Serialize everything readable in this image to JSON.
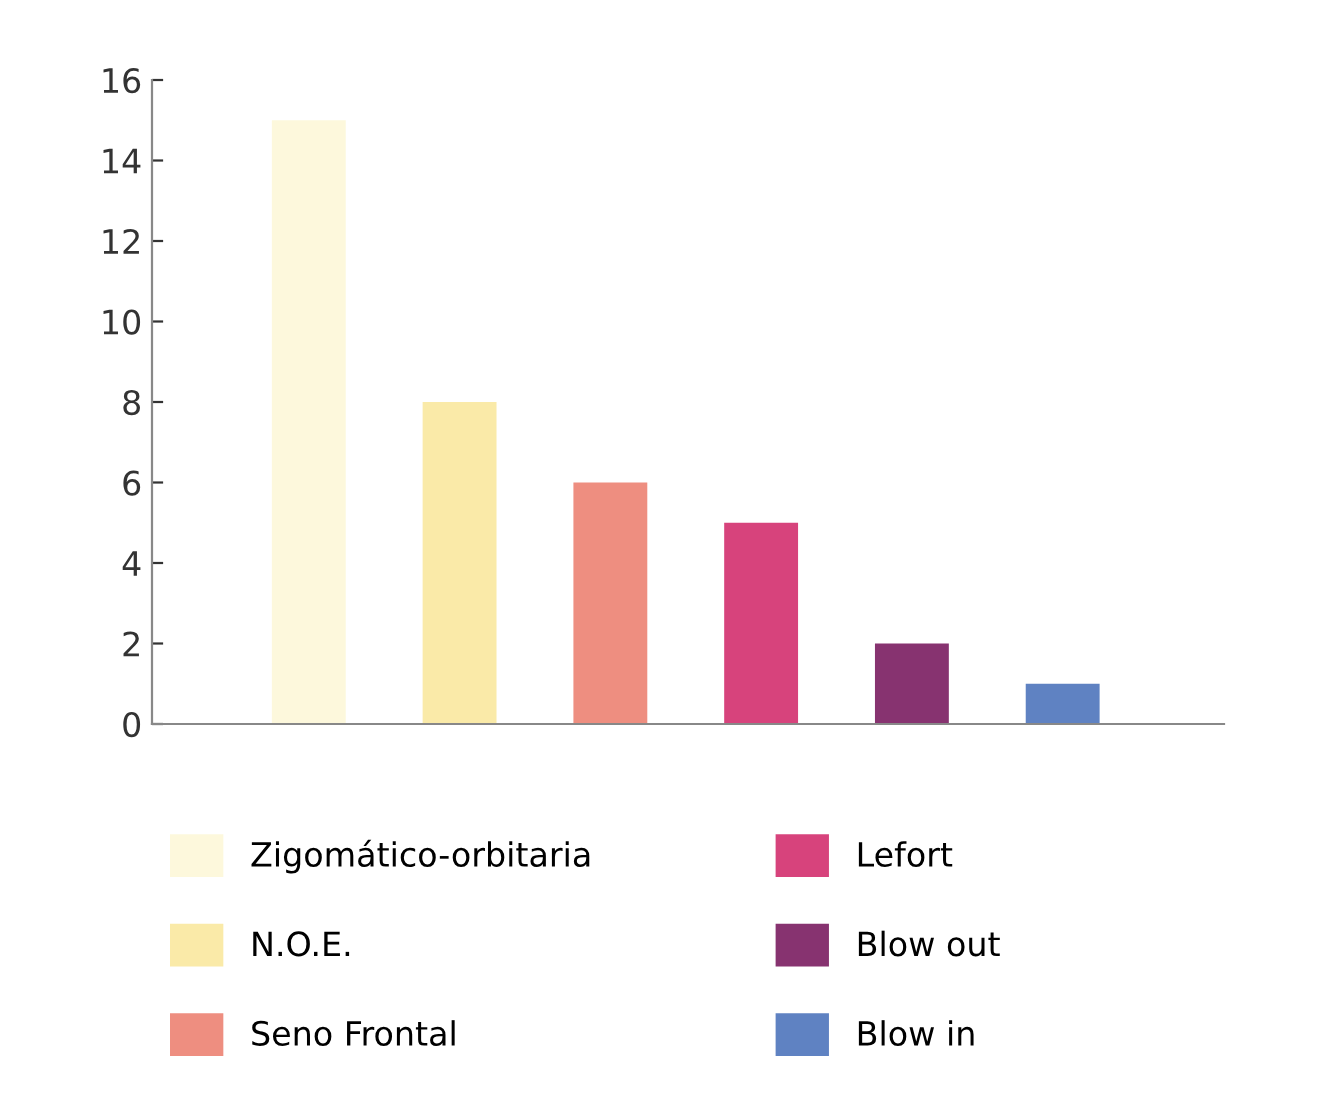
{
  "chart_data": {
    "type": "bar",
    "categories": [
      null,
      null,
      null,
      null,
      null,
      null
    ],
    "series": [
      {
        "name": "Zigomático-orbitaria",
        "color": "#fdf8dc",
        "values": [
          15,
          null,
          null,
          null,
          null,
          null
        ]
      },
      {
        "name": "N.O.E.",
        "color": "#faeaa8",
        "values": [
          null,
          8,
          null,
          null,
          null,
          null
        ]
      },
      {
        "name": "Seno Frontal",
        "color": "#ee8e80",
        "values": [
          null,
          null,
          6,
          null,
          null,
          null
        ]
      },
      {
        "name": "Lefort",
        "color": "#d7437c",
        "values": [
          null,
          null,
          null,
          5,
          null,
          null
        ]
      },
      {
        "name": "Blow out",
        "color": "#873370",
        "values": [
          null,
          null,
          null,
          null,
          2,
          null
        ]
      },
      {
        "name": "Blow in",
        "color": "#5f82c2",
        "values": [
          null,
          null,
          null,
          null,
          null,
          1
        ]
      }
    ],
    "ylim": [
      0,
      16
    ],
    "yticks": [
      0,
      2,
      4,
      6,
      8,
      10,
      12,
      14,
      16
    ],
    "grid": false,
    "legend": "bottom"
  }
}
